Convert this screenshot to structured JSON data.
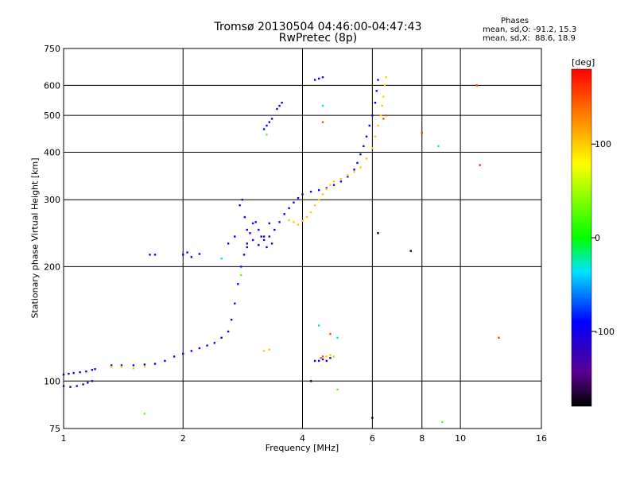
{
  "title": {
    "line1": "Tromsø 20130504 04:46:00-04:47:43",
    "line2": "RwPretec (8p)"
  },
  "phase_stats": {
    "title": "Phases",
    "o_line": "mean, sd,O: -91.2, 15.3",
    "x_line": "mean, sd,X:  88.6, 18.9"
  },
  "chart_data": {
    "type": "scatter",
    "xlabel": "Frequency [MHz]",
    "ylabel": "Stationary phase Virtual Height [km]",
    "x_scale": "log",
    "y_scale": "log",
    "xlim": [
      1,
      16
    ],
    "ylim": [
      75,
      750
    ],
    "x_ticks": [
      1,
      2,
      4,
      6,
      8,
      10,
      16
    ],
    "x_tick_labels": [
      "1",
      "2",
      "4",
      "6",
      "8",
      "10",
      "16"
    ],
    "y_ticks": [
      75,
      100,
      200,
      300,
      400,
      500,
      600,
      750
    ],
    "y_tick_labels": [
      "75",
      "100",
      "200",
      "300",
      "400",
      "500",
      "600",
      "750"
    ],
    "grid": true,
    "colorbar": {
      "label": "[deg]",
      "range": [
        -180,
        180
      ],
      "ticks": [
        100,
        0,
        -100
      ],
      "tick_labels": [
        "100",
        "0",
        "-100"
      ]
    },
    "series": [
      {
        "phase": -100,
        "points": [
          [
            1.0,
            104
          ],
          [
            1.03,
            104.5
          ],
          [
            1.06,
            105
          ],
          [
            1.1,
            105.5
          ],
          [
            1.14,
            106
          ],
          [
            1.18,
            107
          ],
          [
            1.2,
            107.5
          ],
          [
            1.0,
            97
          ],
          [
            1.04,
            96.5
          ],
          [
            1.08,
            97
          ],
          [
            1.12,
            98
          ],
          [
            1.15,
            99
          ],
          [
            1.18,
            100
          ]
        ]
      },
      {
        "phase": -100,
        "points": [
          [
            1.32,
            110
          ],
          [
            1.4,
            110
          ],
          [
            1.5,
            110
          ],
          [
            1.6,
            110.5
          ],
          [
            1.7,
            111
          ],
          [
            1.8,
            113
          ],
          [
            1.9,
            116
          ],
          [
            2.0,
            118
          ],
          [
            2.1,
            120
          ],
          [
            2.2,
            122
          ],
          [
            2.3,
            124
          ],
          [
            2.4,
            126
          ],
          [
            2.5,
            130
          ],
          [
            2.6,
            135
          ],
          [
            2.65,
            145
          ],
          [
            2.7,
            160
          ],
          [
            2.75,
            180
          ],
          [
            2.8,
            200
          ],
          [
            2.85,
            215
          ],
          [
            2.9,
            225
          ]
        ]
      },
      {
        "phase": -100,
        "points": [
          [
            2.9,
            230
          ],
          [
            2.95,
            245
          ],
          [
            3.0,
            260
          ],
          [
            3.05,
            262
          ],
          [
            3.1,
            250
          ],
          [
            3.15,
            240
          ],
          [
            3.2,
            235
          ],
          [
            3.3,
            240
          ],
          [
            3.4,
            250
          ],
          [
            3.5,
            262
          ],
          [
            3.6,
            275
          ],
          [
            3.7,
            285
          ],
          [
            3.8,
            295
          ],
          [
            3.9,
            303
          ],
          [
            4.0,
            310
          ],
          [
            4.2,
            315
          ],
          [
            4.4,
            318
          ],
          [
            4.6,
            322
          ],
          [
            4.8,
            328
          ],
          [
            5.0,
            335
          ],
          [
            5.2,
            345
          ],
          [
            5.4,
            360
          ],
          [
            5.5,
            375
          ],
          [
            5.6,
            395
          ],
          [
            5.7,
            415
          ],
          [
            5.8,
            440
          ],
          [
            5.9,
            470
          ],
          [
            6.0,
            500
          ],
          [
            6.1,
            540
          ],
          [
            6.15,
            580
          ],
          [
            6.2,
            620
          ]
        ]
      },
      {
        "phase": -100,
        "points": [
          [
            2.78,
            290
          ],
          [
            2.82,
            300
          ],
          [
            2.86,
            270
          ],
          [
            2.9,
            250
          ],
          [
            3.0,
            235
          ],
          [
            3.1,
            228
          ],
          [
            3.2,
            240
          ],
          [
            3.25,
            225
          ],
          [
            3.3,
            260
          ],
          [
            3.35,
            230
          ]
        ]
      },
      {
        "phase": -100,
        "points": [
          [
            3.2,
            460
          ],
          [
            3.25,
            470
          ],
          [
            3.3,
            480
          ],
          [
            3.35,
            490
          ],
          [
            3.45,
            520
          ],
          [
            3.5,
            530
          ],
          [
            3.55,
            540
          ],
          [
            4.3,
            620
          ],
          [
            4.4,
            625
          ],
          [
            4.5,
            630
          ]
        ]
      },
      {
        "phase": -100,
        "points": [
          [
            4.3,
            113
          ],
          [
            4.4,
            113
          ],
          [
            4.5,
            114
          ],
          [
            4.6,
            113
          ],
          [
            4.7,
            115
          ]
        ]
      },
      {
        "phase": -95,
        "points": [
          [
            1.65,
            215
          ],
          [
            1.7,
            215
          ],
          [
            2.0,
            215
          ],
          [
            2.05,
            218
          ],
          [
            2.1,
            212
          ],
          [
            2.2,
            216
          ],
          [
            2.6,
            230
          ],
          [
            2.7,
            240
          ]
        ]
      },
      {
        "phase": 100,
        "points": [
          [
            3.7,
            265
          ],
          [
            3.8,
            262
          ],
          [
            3.9,
            258
          ],
          [
            4.0,
            264
          ],
          [
            4.1,
            270
          ],
          [
            4.2,
            278
          ],
          [
            4.3,
            290
          ],
          [
            4.4,
            300
          ],
          [
            4.5,
            310
          ],
          [
            4.6,
            320
          ],
          [
            4.7,
            328
          ],
          [
            4.8,
            335
          ],
          [
            5.0,
            340
          ],
          [
            5.2,
            348
          ],
          [
            5.4,
            355
          ],
          [
            5.6,
            365
          ],
          [
            5.8,
            385
          ],
          [
            6.0,
            410
          ],
          [
            6.1,
            440
          ],
          [
            6.2,
            470
          ],
          [
            6.3,
            500
          ],
          [
            6.35,
            530
          ],
          [
            6.4,
            560
          ],
          [
            6.45,
            600
          ],
          [
            6.5,
            630
          ]
        ]
      },
      {
        "phase": 100,
        "points": [
          [
            1.32,
            109
          ],
          [
            1.4,
            109
          ],
          [
            1.5,
            108
          ],
          [
            1.6,
            109
          ],
          [
            4.6,
            116
          ],
          [
            4.7,
            117
          ],
          [
            4.8,
            116
          ],
          [
            3.2,
            120
          ],
          [
            3.3,
            121
          ]
        ]
      },
      {
        "phase": 150,
        "points": [
          [
            4.45,
            115
          ],
          [
            4.5,
            116
          ],
          [
            4.7,
            133
          ],
          [
            6.4,
            490
          ],
          [
            6.5,
            500
          ],
          [
            4.5,
            480
          ]
        ]
      },
      {
        "phase": 30,
        "points": [
          [
            3.25,
            445
          ],
          [
            2.8,
            190
          ],
          [
            4.9,
            95
          ],
          [
            9.0,
            78
          ],
          [
            1.6,
            82
          ]
        ]
      },
      {
        "phase": -30,
        "points": [
          [
            4.5,
            530
          ],
          [
            8.8,
            415
          ],
          [
            4.4,
            140
          ],
          [
            4.9,
            130
          ],
          [
            2.5,
            210
          ]
        ]
      },
      {
        "phase": -180,
        "points": [
          [
            7.5,
            220
          ],
          [
            6.2,
            245
          ],
          [
            6.0,
            80
          ],
          [
            4.2,
            100
          ]
        ]
      },
      {
        "phase": 160,
        "points": [
          [
            11,
            600
          ],
          [
            12.5,
            130
          ],
          [
            8.0,
            450
          ],
          [
            11.2,
            370
          ]
        ]
      }
    ]
  }
}
